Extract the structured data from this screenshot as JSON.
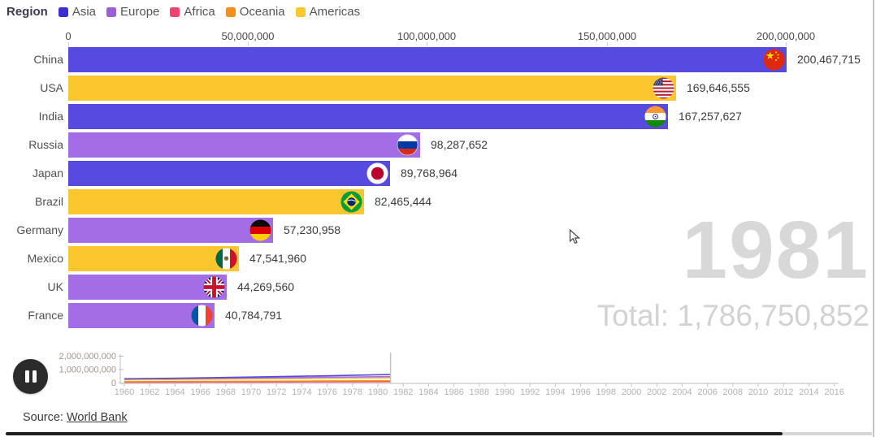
{
  "legend": {
    "title": "Region",
    "items": [
      {
        "label": "Asia",
        "color": "#3e2dd1"
      },
      {
        "label": "Europe",
        "color": "#9b5fd6"
      },
      {
        "label": "Africa",
        "color": "#f0436e"
      },
      {
        "label": "Oceania",
        "color": "#f78f1e"
      },
      {
        "label": "Americas",
        "color": "#fcc92d"
      }
    ]
  },
  "region_colors": {
    "Asia": "#574ade",
    "Europe": "#a36de6",
    "Africa": "#f0436e",
    "Oceania": "#f78f1e",
    "Americas": "#fcc72e"
  },
  "chart_data": [
    {
      "type": "bar",
      "orientation": "horizontal",
      "title": "",
      "categories": [
        "China",
        "USA",
        "India",
        "Russia",
        "Japan",
        "Brazil",
        "Germany",
        "Mexico",
        "UK",
        "France"
      ],
      "values": [
        200467715,
        169646555,
        167257627,
        98287652,
        89768964,
        82465444,
        57230958,
        47541960,
        44269560,
        40784791
      ],
      "value_labels": [
        "200,467,715",
        "169,646,555",
        "167,257,627",
        "98,287,652",
        "89,768,964",
        "82,465,444",
        "57,230,958",
        "47,541,960",
        "44,269,560",
        "40,784,791"
      ],
      "bar_regions": [
        "Asia",
        "Americas",
        "Asia",
        "Europe",
        "Asia",
        "Americas",
        "Europe",
        "Americas",
        "Europe",
        "Europe"
      ],
      "flags": [
        "china",
        "usa",
        "india",
        "russia",
        "japan",
        "brazil",
        "germany",
        "mexico",
        "uk",
        "france"
      ],
      "x_tick_labels": [
        "0",
        "50,000,000",
        "100,000,000",
        "150,000,000",
        "200,000,000"
      ],
      "x_ticks": [
        0,
        50000000,
        100000000,
        150000000,
        200000000
      ],
      "xlim": [
        0,
        225000000
      ],
      "grid": false,
      "legend_position": "top"
    },
    {
      "type": "line",
      "title": "timeline-minichart",
      "x_tick_labels": [
        "1960",
        "1962",
        "1964",
        "1966",
        "1968",
        "1970",
        "1972",
        "1974",
        "1976",
        "1978",
        "1980",
        "1982",
        "1984",
        "1986",
        "1988",
        "1990",
        "1992",
        "1994",
        "1996",
        "1998",
        "2000",
        "2002",
        "2004",
        "2006",
        "2008",
        "2010",
        "2012",
        "2014",
        "2016"
      ],
      "xlim": [
        1960,
        2016
      ],
      "ylim": [
        0,
        2000000000
      ],
      "y_ticks": [
        0,
        1000000000,
        2000000000
      ],
      "y_tick_labels": [
        "0",
        "1,000,000,000",
        "2,000,000,000"
      ],
      "current_year": 1981,
      "x": [
        1960,
        1965,
        1970,
        1975,
        1981
      ],
      "series": [
        {
          "name": "Asia",
          "color": "#574ade",
          "values": [
            310000000,
            370000000,
            440000000,
            520000000,
            630000000
          ]
        },
        {
          "name": "Europe",
          "color": "#a36de6",
          "values": [
            300000000,
            335000000,
            375000000,
            420000000,
            470000000
          ]
        },
        {
          "name": "Americas",
          "color": "#fcc72e",
          "values": [
            235000000,
            265000000,
            300000000,
            335000000,
            375000000
          ]
        },
        {
          "name": "Oceania",
          "color": "#f78f1e",
          "values": [
            100000000,
            115000000,
            130000000,
            145000000,
            165000000
          ]
        },
        {
          "name": "Africa",
          "color": "#f0436e",
          "values": [
            55000000,
            65000000,
            75000000,
            85000000,
            100000000
          ]
        }
      ]
    }
  ],
  "year_display": {
    "year": "1981",
    "total": "Total: 1,786,750,852"
  },
  "source": {
    "prefix": "Source: ",
    "link_text": "World Bank"
  },
  "controls": {
    "pause_icon": "pause-icon"
  }
}
